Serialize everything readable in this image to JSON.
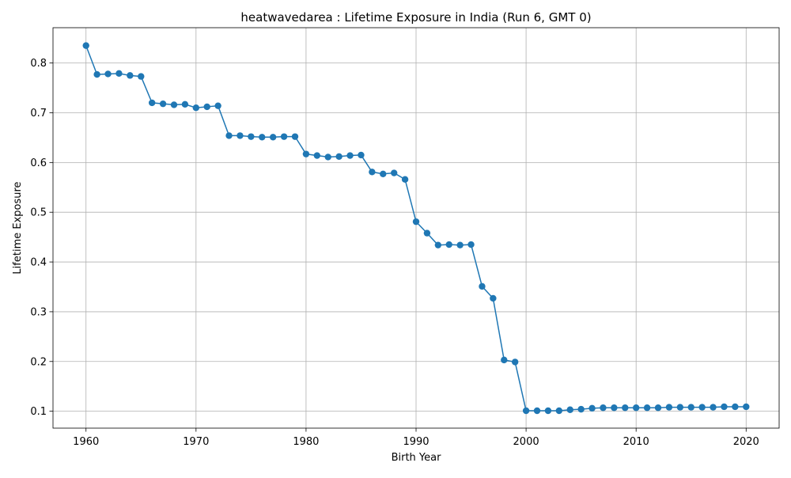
{
  "chart_data": {
    "type": "line",
    "title": "heatwavedarea : Lifetime Exposure in India (Run 6, GMT 0)",
    "xlabel": "Birth Year",
    "ylabel": "Lifetime Exposure",
    "xlim": [
      1957,
      2023
    ],
    "ylim": [
      0.066,
      0.871
    ],
    "xticks": [
      1960,
      1970,
      1980,
      1990,
      2000,
      2010,
      2020
    ],
    "yticks": [
      0.1,
      0.2,
      0.3,
      0.4,
      0.5,
      0.6,
      0.7,
      0.8
    ],
    "grid": true,
    "color": "#1f77b4",
    "marker": "circle",
    "x": [
      1960,
      1961,
      1962,
      1963,
      1964,
      1965,
      1966,
      1967,
      1968,
      1969,
      1970,
      1971,
      1972,
      1973,
      1974,
      1975,
      1976,
      1977,
      1978,
      1979,
      1980,
      1981,
      1982,
      1983,
      1984,
      1985,
      1986,
      1987,
      1988,
      1989,
      1990,
      1991,
      1992,
      1993,
      1994,
      1995,
      1996,
      1997,
      1998,
      1999,
      2000,
      2001,
      2002,
      2003,
      2004,
      2005,
      2006,
      2007,
      2008,
      2009,
      2010,
      2011,
      2012,
      2013,
      2014,
      2015,
      2016,
      2017,
      2018,
      2019,
      2020
    ],
    "y": [
      0.835,
      0.777,
      0.778,
      0.779,
      0.775,
      0.773,
      0.72,
      0.718,
      0.716,
      0.717,
      0.71,
      0.712,
      0.714,
      0.654,
      0.654,
      0.652,
      0.651,
      0.651,
      0.652,
      0.652,
      0.617,
      0.614,
      0.611,
      0.612,
      0.614,
      0.615,
      0.581,
      0.577,
      0.579,
      0.566,
      0.481,
      0.458,
      0.434,
      0.435,
      0.434,
      0.435,
      0.351,
      0.327,
      0.203,
      0.199,
      0.101,
      0.101,
      0.101,
      0.101,
      0.103,
      0.104,
      0.106,
      0.107,
      0.107,
      0.107,
      0.107,
      0.107,
      0.107,
      0.108,
      0.108,
      0.108,
      0.108,
      0.108,
      0.109,
      0.109,
      0.109
    ]
  }
}
